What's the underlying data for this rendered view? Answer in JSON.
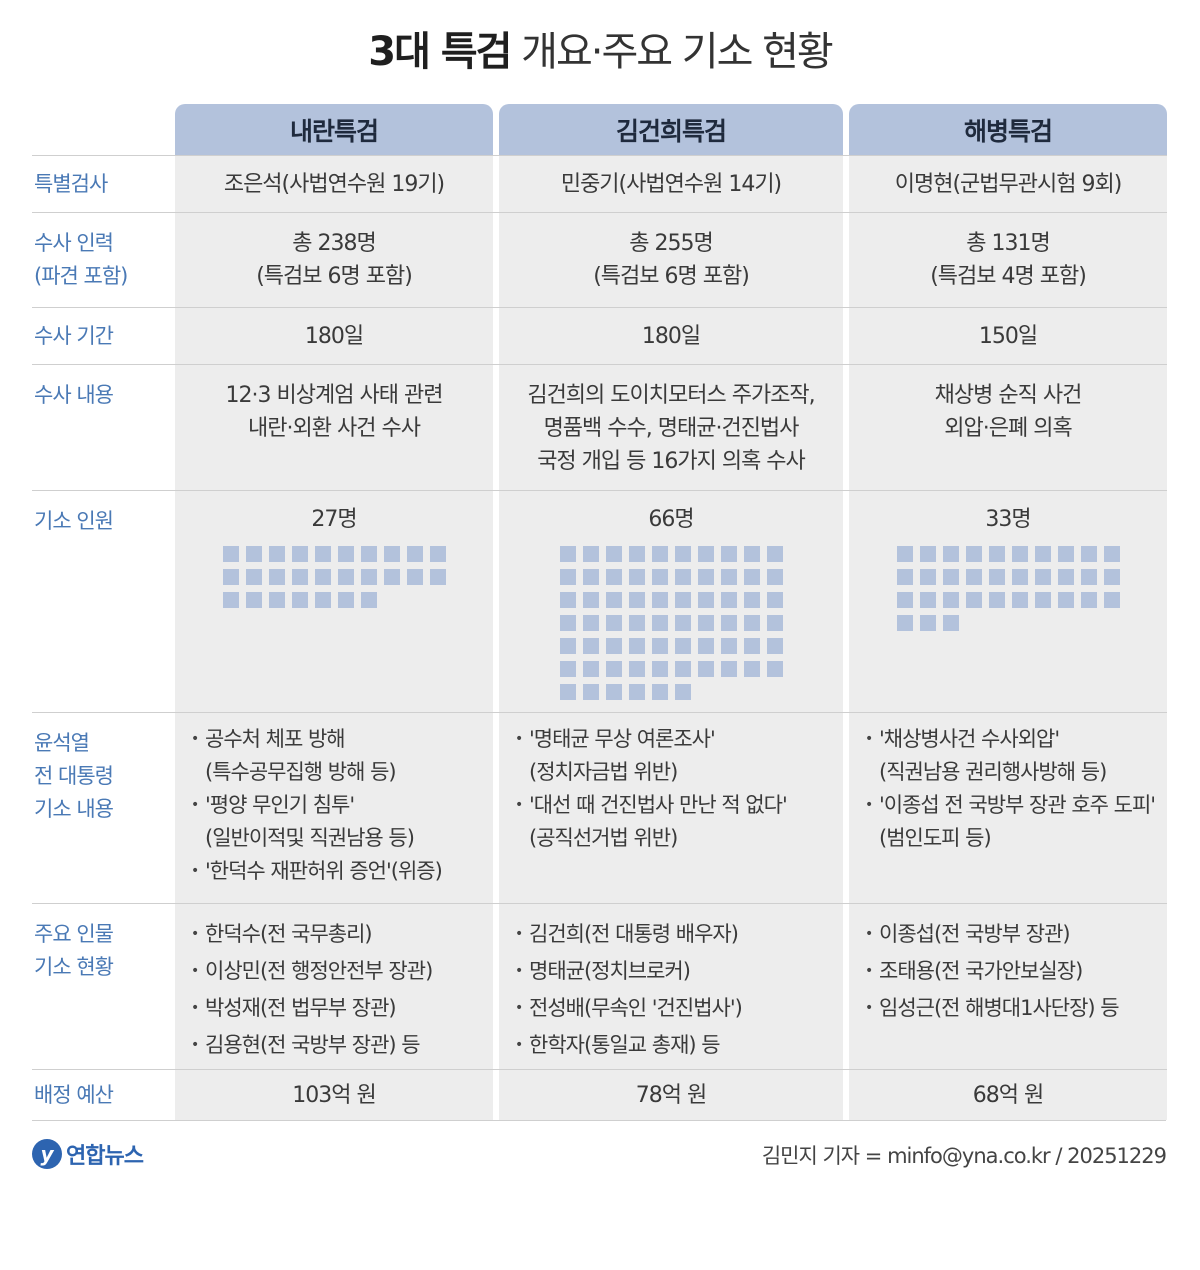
{
  "title": {
    "bold": "3대 특검",
    "rest": "개요·주요 기소 현황"
  },
  "columns": [
    "내란특검",
    "김건희특검",
    "해병특검"
  ],
  "rows": {
    "prosecutor": {
      "label": "특별검사",
      "values": [
        "조은석(사법연수원 19기)",
        "민중기(사법연수원 14기)",
        "이명현(군법무관시험 9회)"
      ]
    },
    "staff": {
      "label_lines": [
        "수사 인력",
        "(파견 포함)"
      ],
      "values": [
        [
          "총 238명",
          "(특검보 6명 포함)"
        ],
        [
          "총 255명",
          "(특검보 6명 포함)"
        ],
        [
          "총 131명",
          "(특검보 4명 포함)"
        ]
      ]
    },
    "period": {
      "label": "수사 기간",
      "values": [
        "180일",
        "180일",
        "150일"
      ]
    },
    "scope": {
      "label": "수사 내용",
      "values": [
        [
          "12·3 비상계엄 사태 관련",
          "내란·외환 사건 수사"
        ],
        [
          "김건희의 도이치모터스 주가조작,",
          "명품백 수수, 명태균·건진법사",
          "국정 개입 등 16가지 의혹 수사"
        ],
        [
          "채상병 순직 사건",
          "외압·은폐 의혹"
        ]
      ]
    },
    "indicted": {
      "label": "기소 인원",
      "values": [
        "27명",
        "66명",
        "33명"
      ],
      "counts": [
        27,
        66,
        33
      ],
      "per_row": [
        10,
        10,
        10
      ]
    },
    "yoon": {
      "label_lines": [
        "윤석열",
        "전 대통령",
        "기소 내용"
      ],
      "values": [
        [
          [
            "공수처 체포 방해",
            "(특수공무집행 방해 등)"
          ],
          [
            "'평양 무인기 침투'",
            "(일반이적및 직권남용 등)"
          ],
          [
            "'한덕수 재판허위 증언'(위증)"
          ]
        ],
        [
          [
            "'명태균 무상 여론조사'",
            "(정치자금법 위반)"
          ],
          [
            "'대선 때 건진법사 만난 적 없다'",
            "(공직선거법 위반)"
          ]
        ],
        [
          [
            "'채상병사건 수사외압'",
            "(직권남용 권리행사방해 등)"
          ],
          [
            "'이종섭 전 국방부 장관 호주 도피'",
            "(범인도피 등)"
          ]
        ]
      ]
    },
    "figures": {
      "label_lines": [
        "주요 인물",
        "기소 현황"
      ],
      "values": [
        [
          "한덕수(전 국무총리)",
          "이상민(전 행정안전부 장관)",
          "박성재(전 법무부 장관)",
          "김용현(전 국방부 장관) 등"
        ],
        [
          "김건희(전 대통령 배우자)",
          "명태균(정치브로커)",
          "전성배(무속인 '건진법사')",
          "한학자(통일교 총재) 등"
        ],
        [
          "이종섭(전 국방부 장관)",
          "조태용(전 국가안보실장)",
          "임성근(전 해병대1사단장) 등"
        ]
      ]
    },
    "budget": {
      "label": "배정 예산",
      "values": [
        "103억 원",
        "78억 원",
        "68억 원"
      ]
    }
  },
  "footer": {
    "logo_mark": "y",
    "logo_text": "연합뉴스",
    "credit": "김민지 기자 = minfo@yna.co.kr / 20251229"
  },
  "colors": {
    "header_bg": "#b3c2dc",
    "label_text": "#4a79b5",
    "cell_bg": "#ededed",
    "square": "#b3c2dc"
  }
}
